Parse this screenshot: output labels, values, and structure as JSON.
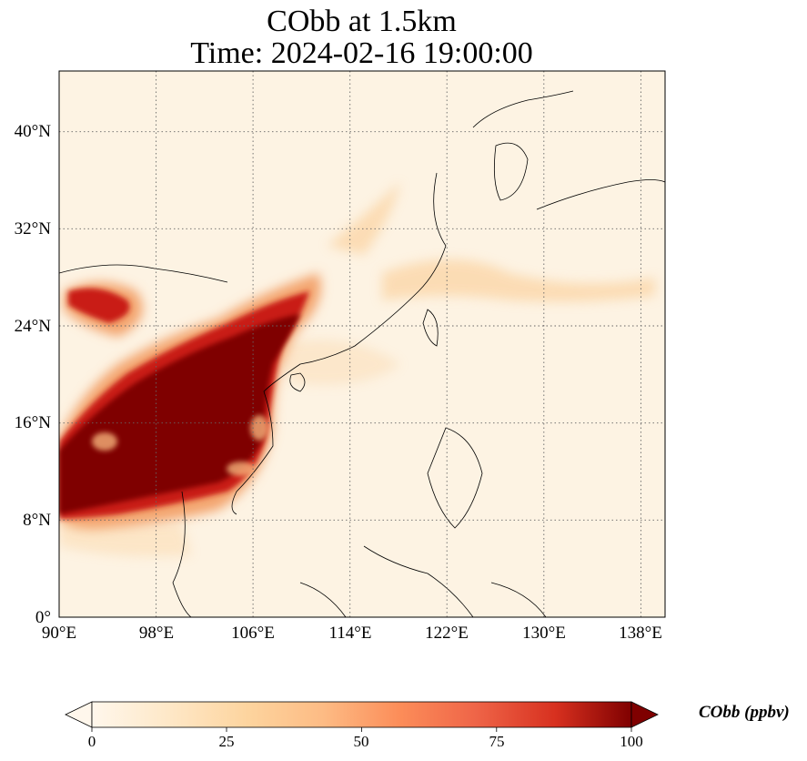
{
  "title_line1": "CObb at 1.5km",
  "title_line2": "Time: 2024-02-16 19:00:00",
  "map": {
    "lon_range": [
      90,
      140
    ],
    "lat_range": [
      0,
      45
    ],
    "lon_ticks": [
      "90°E",
      "98°E",
      "106°E",
      "114°E",
      "122°E",
      "130°E",
      "138°E"
    ],
    "lat_ticks": [
      "0°",
      "8°N",
      "16°N",
      "24°N",
      "32°N",
      "40°N"
    ],
    "gridlines": "dotted",
    "colormap": "OrRd",
    "high_color": "#7f0000",
    "low_color": "#fff7ec"
  },
  "colorbar": {
    "label": "CObb (ppbv)",
    "ticks": [
      "0",
      "25",
      "50",
      "75",
      "100"
    ],
    "range": [
      0,
      100
    ],
    "extend": "both"
  }
}
